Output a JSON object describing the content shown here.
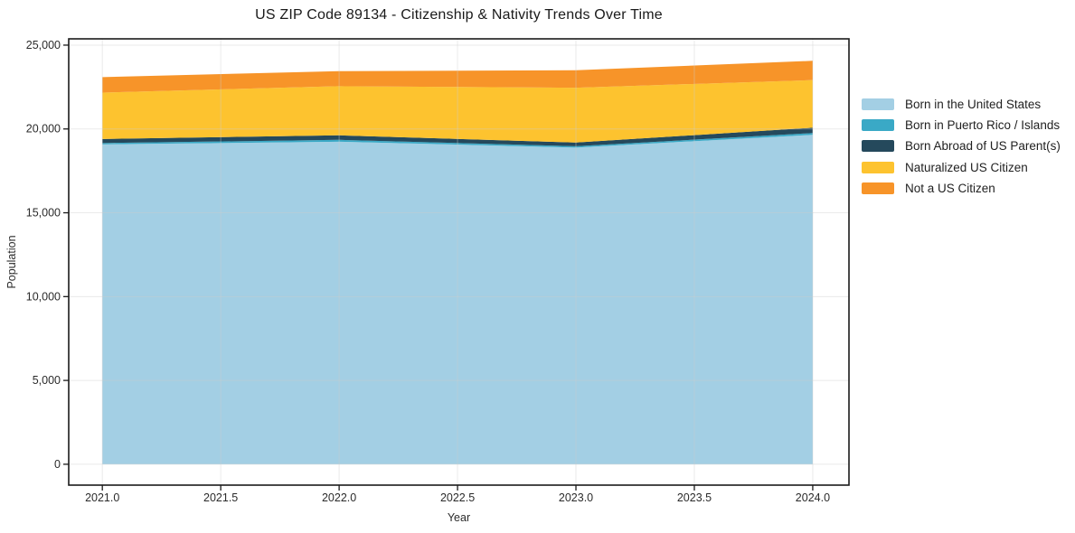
{
  "chart_data": {
    "type": "area",
    "stacked": true,
    "title": "US ZIP Code 89134 - Citizenship & Nativity Trends Over Time",
    "xlabel": "Year",
    "ylabel": "Population",
    "x": [
      2021,
      2022,
      2023,
      2024
    ],
    "series": [
      {
        "name": "Born in the United States",
        "color": "#a3cfe4",
        "values": [
          19080,
          19240,
          18890,
          19650
        ]
      },
      {
        "name": "Born in Puerto Rico / Islands",
        "color": "#3aa9c6",
        "values": [
          80,
          110,
          80,
          105
        ]
      },
      {
        "name": "Born Abroad of US Parent(s)",
        "color": "#25495c",
        "values": [
          240,
          270,
          220,
          320
        ]
      },
      {
        "name": "Naturalized US Citizen",
        "color": "#fdc32f",
        "values": [
          2770,
          2930,
          3270,
          2840
        ]
      },
      {
        "name": "Not a US Citizen",
        "color": "#f79429",
        "values": [
          920,
          900,
          1040,
          1150
        ]
      }
    ],
    "xlim": [
      2020.858,
      2024.153
    ],
    "ylim": [
      -1245,
      25375
    ],
    "xticks": {
      "values": [
        2021.0,
        2021.5,
        2022.0,
        2022.5,
        2023.0,
        2023.5,
        2024.0
      ],
      "labels": [
        "2021.0",
        "2021.5",
        "2022.0",
        "2022.5",
        "2023.0",
        "2023.5",
        "2024.0"
      ]
    },
    "yticks": {
      "values": [
        0,
        5000,
        10000,
        15000,
        20000,
        25000
      ],
      "labels": [
        "0",
        "5,000",
        "10,000",
        "15,000",
        "20,000",
        "25,000"
      ]
    },
    "grid": true,
    "legend_position": "right-outside",
    "axis_color": "#1a1a1a",
    "grid_color": "#cdcdcd",
    "tick_label_color": "#2b2b2b"
  }
}
